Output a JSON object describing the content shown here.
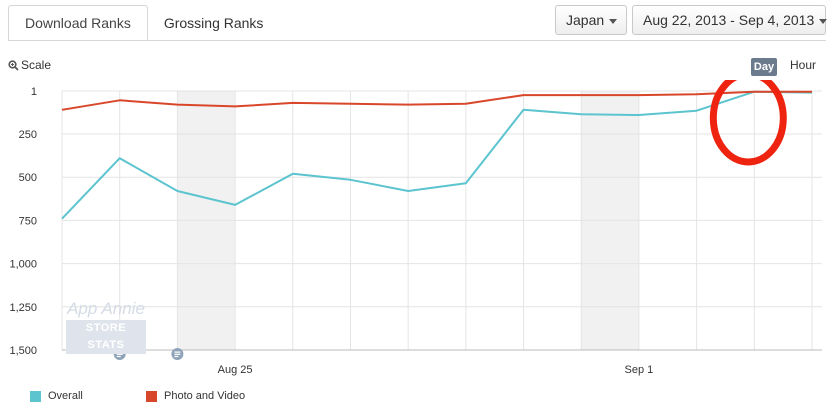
{
  "tabs": [
    {
      "label": "Download Ranks",
      "active": true
    },
    {
      "label": "Grossing Ranks",
      "active": false
    }
  ],
  "filters": {
    "country": "Japan",
    "date_range": "Aug 22, 2013 - Sep 4, 2013"
  },
  "controls": {
    "scale_label": "Scale",
    "granularity_day": "Day",
    "granularity_hour": "Hour"
  },
  "watermark": {
    "line1": "App Annie",
    "line2": "STORE STATS"
  },
  "colors": {
    "overall": "#5bc4cf",
    "photo_video": "#d9472b",
    "annotation": "#ee2411"
  },
  "chart_data": {
    "type": "line",
    "x": [
      "Aug 22",
      "Aug 23",
      "Aug 24",
      "Aug 25",
      "Aug 26",
      "Aug 27",
      "Aug 28",
      "Aug 29",
      "Aug 30",
      "Aug 31",
      "Sep 1",
      "Sep 2",
      "Sep 3",
      "Sep 4"
    ],
    "x_tick_labels": [
      {
        "at": "Aug 25",
        "label": "Aug 25"
      },
      {
        "at": "Sep 1",
        "label": "Sep 1"
      }
    ],
    "y_tick_labels": [
      "1",
      "250",
      "500",
      "750",
      "1,000",
      "1,250",
      "1,500"
    ],
    "y_ticks": [
      1,
      250,
      500,
      750,
      1000,
      1250,
      1500
    ],
    "ylim": [
      1,
      1500
    ],
    "y_reversed": true,
    "grid": true,
    "weekend_bands": [
      [
        "Aug 24",
        "Aug 25"
      ],
      [
        "Aug 31",
        "Sep 1"
      ]
    ],
    "note_markers": [
      "Aug 23",
      "Aug 24"
    ],
    "highlight": "Sep 3",
    "series": [
      {
        "name": "Overall",
        "values": [
          740,
          390,
          580,
          660,
          480,
          515,
          580,
          535,
          110,
          135,
          140,
          115,
          5,
          10
        ]
      },
      {
        "name": "Photo and Video",
        "values": [
          110,
          55,
          80,
          90,
          70,
          75,
          80,
          75,
          25,
          25,
          25,
          20,
          5,
          5
        ]
      }
    ],
    "legend_position": "bottom-left"
  }
}
